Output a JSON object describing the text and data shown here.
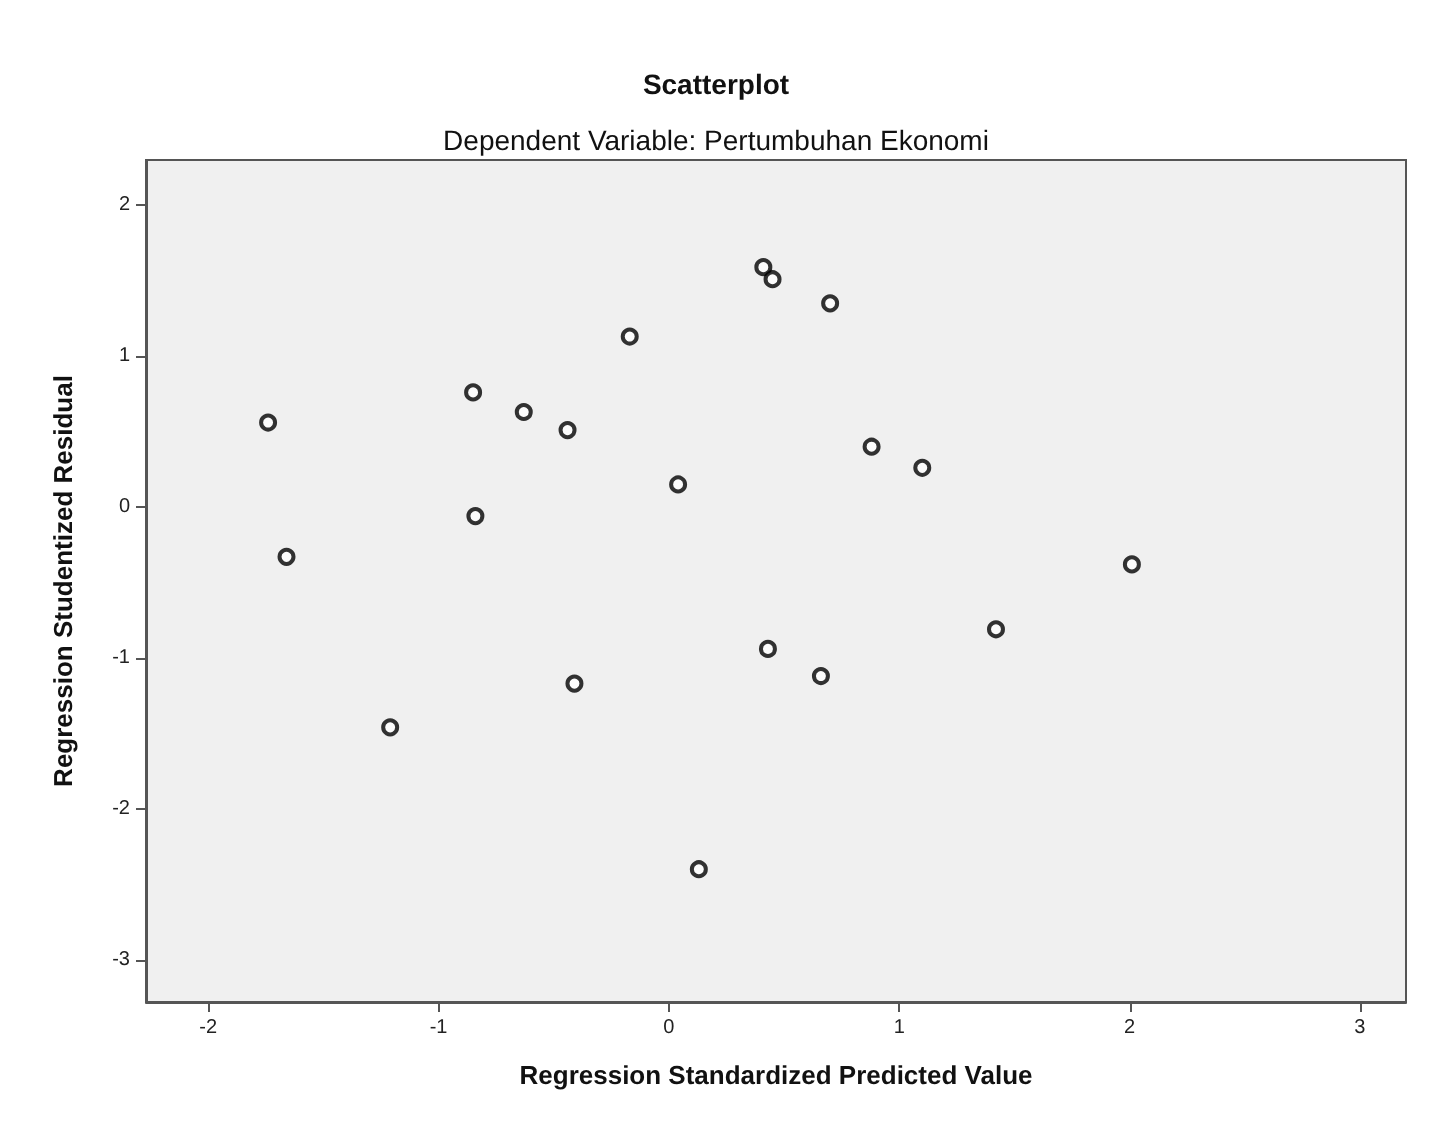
{
  "chart_data": {
    "type": "scatter",
    "title": "Scatterplot",
    "subtitle": "Dependent Variable: Pertumbuhan Ekonomi",
    "xlabel": "Regression Standardized Predicted Value",
    "ylabel": "Regression Studentized Residual",
    "x": [
      -1.66,
      -1.21,
      -0.41,
      0.13,
      0.43,
      0.66,
      1.42,
      2.01,
      -1.74,
      -0.85,
      -0.84,
      -0.63,
      -0.44,
      -0.17,
      0.04,
      0.41,
      0.45,
      0.7,
      0.88,
      1.1
    ],
    "series": [
      {
        "color": "#000000",
        "values": [
          -0.33,
          -1.46,
          -1.17,
          -2.4,
          -0.94,
          -1.12,
          -0.81,
          -0.38,
          0.56,
          0.76,
          -0.06,
          0.63,
          0.51,
          1.13,
          0.15,
          1.59,
          1.51,
          1.35,
          0.4,
          0.26
        ]
      }
    ],
    "xlim": [
      -2.27,
      3.2
    ],
    "xticks": [
      -2,
      -1,
      0,
      1,
      2,
      3
    ],
    "ylim": [
      -3.28,
      2.3
    ],
    "yticks": [
      -3,
      -2,
      -1,
      0,
      1,
      2
    ],
    "grid": false,
    "marker": "circle"
  }
}
